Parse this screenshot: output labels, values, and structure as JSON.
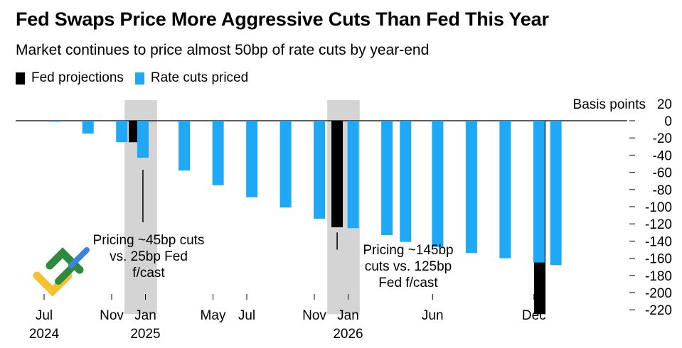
{
  "chart_data": {
    "type": "bar",
    "title": "Fed Swaps Price More Aggressive Cuts Than Fed This Year",
    "subtitle": "Market continues to price almost 50bp of rate cuts by year-end",
    "ylabel": "Basis points",
    "ylim": [
      -220,
      20
    ],
    "yticks": [
      20,
      0,
      -20,
      -40,
      -60,
      -80,
      -100,
      -120,
      -140,
      -160,
      -180,
      -200,
      -220
    ],
    "x_tick_labels": [
      {
        "label": "Jul",
        "year": "2024",
        "month_index": 0
      },
      {
        "label": "Nov",
        "year": "",
        "month_index": 4
      },
      {
        "label": "Jan",
        "year": "2025",
        "month_index": 6
      },
      {
        "label": "May",
        "year": "",
        "month_index": 10
      },
      {
        "label": "Jul",
        "year": "",
        "month_index": 12
      },
      {
        "label": "Nov",
        "year": "",
        "month_index": 16
      },
      {
        "label": "Jan",
        "year": "2026",
        "month_index": 18
      },
      {
        "label": "Jun",
        "year": "",
        "month_index": 23
      },
      {
        "label": "Dec",
        "year": "",
        "month_index": 29
      }
    ],
    "series": [
      {
        "name": "Fed projections",
        "color": "#000000",
        "points": [
          {
            "month_index": 5.35,
            "value": -25
          },
          {
            "month_index": 17.35,
            "value": -124
          },
          {
            "month_index": 29.35,
            "value": -225
          }
        ]
      },
      {
        "name": "Rate cuts priced",
        "color": "#1ea8f5",
        "points": [
          {
            "month_index": 0.6,
            "value": -1
          },
          {
            "month_index": 2.6,
            "value": -15
          },
          {
            "month_index": 4.6,
            "value": -25
          },
          {
            "month_index": 5.85,
            "value": -43
          },
          {
            "month_index": 8.3,
            "value": -58
          },
          {
            "month_index": 10.3,
            "value": -75
          },
          {
            "month_index": 12.3,
            "value": -89
          },
          {
            "month_index": 14.3,
            "value": -101
          },
          {
            "month_index": 16.3,
            "value": -114
          },
          {
            "month_index": 18.3,
            "value": -125
          },
          {
            "month_index": 20.3,
            "value": -133
          },
          {
            "month_index": 21.4,
            "value": -141
          },
          {
            "month_index": 23.3,
            "value": -147
          },
          {
            "month_index": 25.3,
            "value": -154
          },
          {
            "month_index": 27.3,
            "value": -160
          },
          {
            "month_index": 29.3,
            "value": -165
          },
          {
            "month_index": 30.3,
            "value": -168
          }
        ]
      }
    ],
    "highlight_bands": [
      {
        "from_month_index": 5.1,
        "to_month_index": 6.35
      },
      {
        "from_month_index": 17.1,
        "to_month_index": 18.35
      }
    ],
    "annotations": [
      {
        "lines": [
          "Pricing ~45bp cuts",
          "vs. 25bp Fed",
          "f/cast"
        ],
        "month_index": 5.85,
        "value": -43
      },
      {
        "lines": [
          "Pricing ~145bp",
          "cuts vs. 125bp",
          "Fed f/cast"
        ],
        "month_index": 17.35,
        "value": -136
      }
    ]
  }
}
